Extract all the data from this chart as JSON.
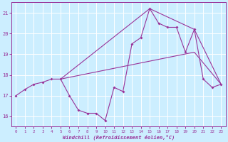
{
  "xlabel": "Windchill (Refroidissement éolien,°C)",
  "bg_color": "#cceeff",
  "grid_color": "#ffffff",
  "line_color": "#993399",
  "xlim": [
    -0.5,
    23.5
  ],
  "ylim": [
    15.5,
    21.5
  ],
  "yticks": [
    16,
    17,
    18,
    19,
    20,
    21
  ],
  "xticks": [
    0,
    1,
    2,
    3,
    4,
    5,
    6,
    7,
    8,
    9,
    10,
    11,
    12,
    13,
    14,
    15,
    16,
    17,
    18,
    19,
    20,
    21,
    22,
    23
  ],
  "curve1_x": [
    0,
    1,
    2,
    3,
    4,
    5,
    6,
    7,
    8,
    9,
    10,
    11,
    12,
    13,
    14,
    15,
    16,
    17,
    18,
    19,
    20,
    21,
    22,
    23
  ],
  "curve1_y": [
    17.0,
    17.3,
    17.55,
    17.65,
    17.8,
    17.8,
    17.0,
    16.3,
    16.15,
    16.15,
    15.8,
    17.4,
    17.2,
    19.5,
    19.8,
    21.2,
    20.5,
    20.3,
    20.3,
    19.1,
    20.2,
    17.8,
    17.4,
    17.55
  ],
  "line1_x": [
    5,
    15,
    20,
    23
  ],
  "line1_y": [
    17.8,
    21.2,
    20.2,
    17.55
  ],
  "line2_x": [
    5,
    20,
    23
  ],
  "line2_y": [
    17.8,
    19.1,
    17.55
  ]
}
